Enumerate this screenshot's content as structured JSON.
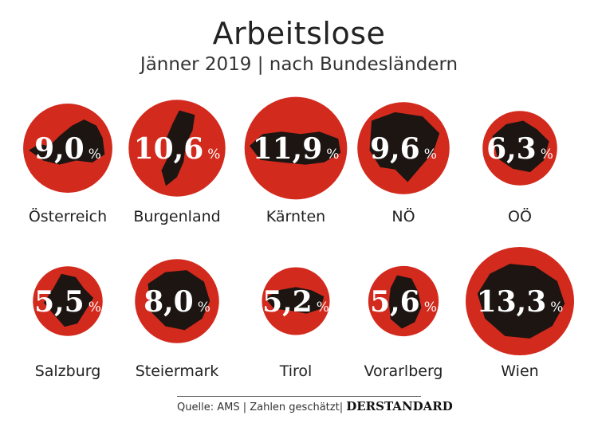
{
  "title": "Arbeitslose",
  "subtitle": "Jänner 2019 | nach Bundesländern",
  "source": "Quelle: AMS | Zahlen geschätzt|",
  "brand": "DERSTANDARD",
  "colors": {
    "circle": "#d32a1e",
    "shape": "#1c1512",
    "value_text": "#ffffff",
    "label_text": "#222222"
  },
  "chart_data": {
    "type": "proportional-circles",
    "unit": "%",
    "items": [
      {
        "name": "Österreich",
        "value": 9.0,
        "display": "9,0"
      },
      {
        "name": "Burgenland",
        "value": 10.6,
        "display": "10,6"
      },
      {
        "name": "Kärnten",
        "value": 11.9,
        "display": "11,9"
      },
      {
        "name": "NÖ",
        "value": 9.6,
        "display": "9,6"
      },
      {
        "name": "OÖ",
        "value": 6.3,
        "display": "6,3"
      },
      {
        "name": "Salzburg",
        "value": 5.5,
        "display": "5,5"
      },
      {
        "name": "Steiermark",
        "value": 8.0,
        "display": "8,0"
      },
      {
        "name": "Tirol",
        "value": 5.2,
        "display": "5,2"
      },
      {
        "name": "Vorarlberg",
        "value": 5.6,
        "display": "5,6"
      },
      {
        "name": "Wien",
        "value": 13.3,
        "display": "13,3"
      }
    ]
  }
}
